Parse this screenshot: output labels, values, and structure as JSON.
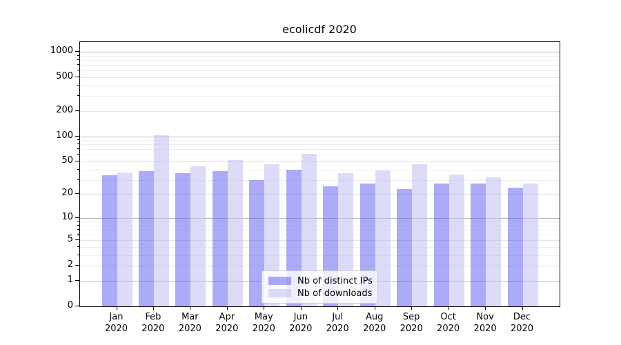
{
  "chart_data": {
    "type": "bar",
    "title": "ecolicdf 2020",
    "xlabel": "",
    "ylabel": "",
    "yscale": "log1p",
    "ylim": [
      0,
      1300
    ],
    "grid": "horizontal",
    "legend_position": "lower center",
    "xticks": [
      {
        "line1": "Jan",
        "line2": "2020"
      },
      {
        "line1": "Feb",
        "line2": "2020"
      },
      {
        "line1": "Mar",
        "line2": "2020"
      },
      {
        "line1": "Apr",
        "line2": "2020"
      },
      {
        "line1": "May",
        "line2": "2020"
      },
      {
        "line1": "Jun",
        "line2": "2020"
      },
      {
        "line1": "Jul",
        "line2": "2020"
      },
      {
        "line1": "Aug",
        "line2": "2020"
      },
      {
        "line1": "Sep",
        "line2": "2020"
      },
      {
        "line1": "Oct",
        "line2": "2020"
      },
      {
        "line1": "Nov",
        "line2": "2020"
      },
      {
        "line1": "Dec",
        "line2": "2020"
      }
    ],
    "yticks": [
      {
        "value": 0,
        "label": "0"
      },
      {
        "value": 1,
        "label": "1"
      },
      {
        "value": 2,
        "label": "2"
      },
      {
        "value": 5,
        "label": "5"
      },
      {
        "value": 10,
        "label": "10"
      },
      {
        "value": 20,
        "label": "20"
      },
      {
        "value": 50,
        "label": "50"
      },
      {
        "value": 100,
        "label": "100"
      },
      {
        "value": 200,
        "label": "200"
      },
      {
        "value": 500,
        "label": "500"
      },
      {
        "value": 1000,
        "label": "1000"
      }
    ],
    "yticks_minor": [
      3,
      4,
      6,
      7,
      8,
      9,
      30,
      40,
      60,
      70,
      80,
      90,
      300,
      400,
      600,
      700,
      800,
      900
    ],
    "series": [
      {
        "name": "Nb of distinct IPs",
        "color": "rgba(77,77,238,0.47)",
        "solid_color": "#a8a8f5",
        "values": [
          34,
          38,
          36,
          38,
          30,
          40,
          25,
          27,
          23,
          27,
          27,
          24
        ]
      },
      {
        "name": "Nb of downloads",
        "color": "rgba(187,187,242,0.52)",
        "solid_color": "#dadaf8",
        "values": [
          37,
          103,
          44,
          52,
          46,
          62,
          36,
          39,
          46,
          35,
          32,
          27
        ]
      }
    ],
    "colors": {
      "spine": "#000000",
      "grid_major": "#b9b9b9",
      "grid_minor": "#eeeeee",
      "legend_border": "#cccccc"
    }
  }
}
